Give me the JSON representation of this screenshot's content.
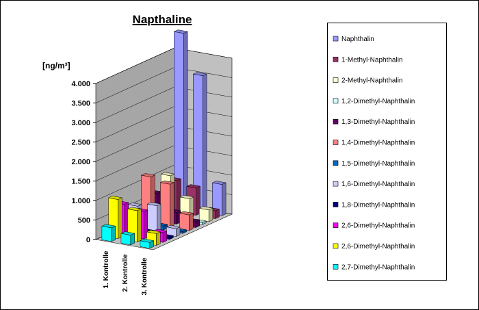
{
  "chart_data": {
    "type": "bar3d",
    "title": "Napthaline",
    "y_label": "[ng/m³]",
    "categories": [
      "1. Kontrolle",
      "2. Kontrolle",
      "3. Kontrolle"
    ],
    "ylim": [
      0,
      4000
    ],
    "yticks": [
      0,
      500,
      {
        "value": 1000,
        "label": "1.000"
      },
      {
        "value": 1500,
        "label": "1.500"
      },
      {
        "value": 2000,
        "label": "2.000"
      },
      {
        "value": 2500,
        "label": "2.500"
      },
      {
        "value": 3000,
        "label": "3.000"
      },
      {
        "value": 3500,
        "label": "3.500"
      },
      {
        "value": 4000,
        "label": "4.000"
      }
    ],
    "grid": true,
    "legend": "right",
    "series": [
      {
        "name": "Naphthalin",
        "color": "#9999ff",
        "values": [
          4500,
          3500,
          800
        ]
      },
      {
        "name": "1-Methyl-Naphthalin",
        "color": "#993366",
        "values": [
          800,
          700,
          200
        ]
      },
      {
        "name": "2-Methyl-Naphthalin",
        "color": "#ffffcc",
        "values": [
          1000,
          500,
          300
        ]
      },
      {
        "name": "1,2-Dimethyl-Naphthalin",
        "color": "#ccffff",
        "values": [
          100,
          150,
          50
        ]
      },
      {
        "name": "1,3-Dimethyl-Naphthalin",
        "color": "#660066",
        "values": [
          700,
          300,
          150
        ]
      },
      {
        "name": "1,4-Dimethyl-Naphthalin",
        "color": "#ff8080",
        "values": [
          1200,
          1100,
          400
        ]
      },
      {
        "name": "1,5-Dimethyl-Naphthalin",
        "color": "#0066cc",
        "values": [
          150,
          100,
          50
        ]
      },
      {
        "name": "1,6-Dimethyl-Naphthalin",
        "color": "#ccccff",
        "values": [
          600,
          700,
          200
        ]
      },
      {
        "name": "1,8-Dimethyl-Naphthalin",
        "color": "#000080",
        "values": [
          100,
          100,
          50
        ]
      },
      {
        "name": "2,6-Dimethyl-Naphthalin",
        "color": "#ff00ff",
        "values": [
          800,
          700,
          250
        ]
      },
      {
        "name": "2,6-Dimethyl-Naphthalin",
        "color": "#ffff00",
        "values": [
          1000,
          800,
          300
        ]
      },
      {
        "name": "2,7-Dimethyl-Naphthalin",
        "color": "#00ffff",
        "values": [
          350,
          250,
          150
        ]
      }
    ]
  }
}
